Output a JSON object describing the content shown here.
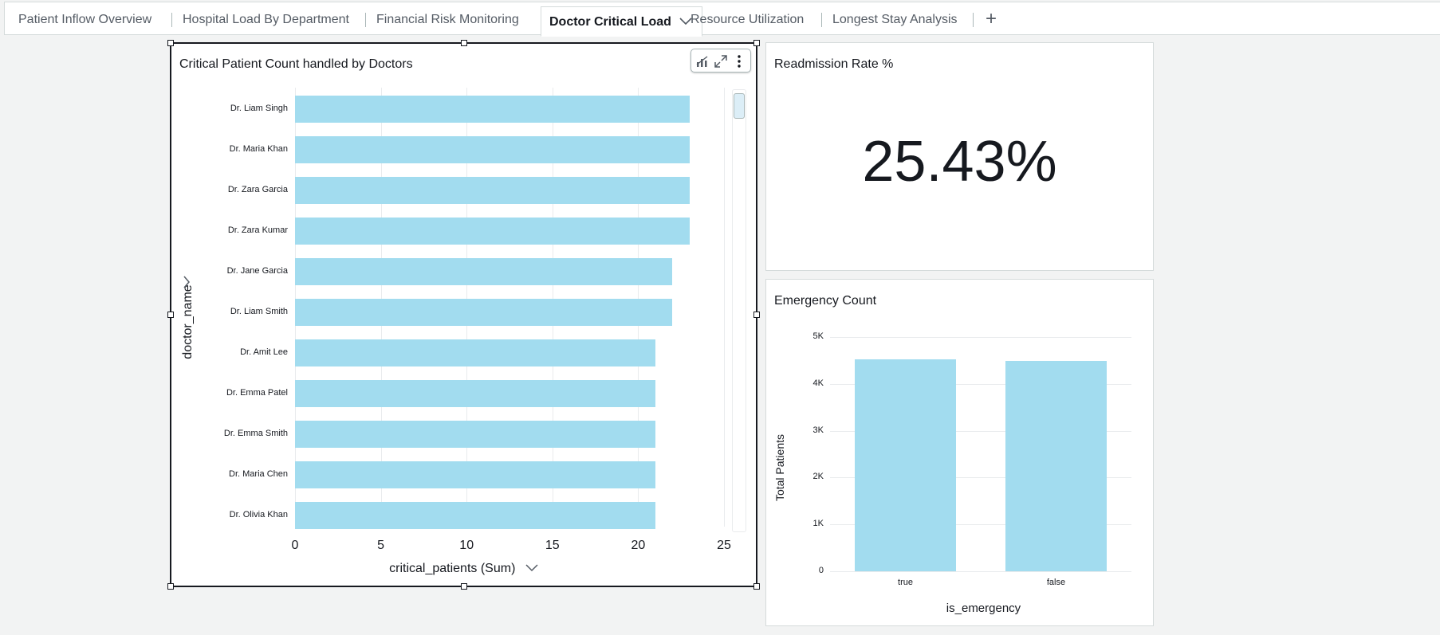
{
  "tabs": [
    {
      "label": "Patient Inflow Overview"
    },
    {
      "label": "Hospital Load By Department"
    },
    {
      "label": "Financial Risk Monitoring"
    },
    {
      "label": "Doctor Critical Load"
    },
    {
      "label": "Resource Utilization"
    },
    {
      "label": "Longest Stay Analysis"
    }
  ],
  "add_tab_label": "+",
  "critical_chart": {
    "title": "Critical Patient Count handled by Doctors",
    "y_axis_label": "doctor_name",
    "x_axis_label": "critical_patients (Sum)",
    "chart_data": {
      "type": "bar",
      "orientation": "horizontal",
      "title": "Critical Patient Count handled by Doctors",
      "xlabel": "critical_patients (Sum)",
      "ylabel": "doctor_name",
      "categories": [
        "Dr. Liam Singh",
        "Dr. Maria Khan",
        "Dr. Zara Garcia",
        "Dr. Zara Kumar",
        "Dr. Jane Garcia",
        "Dr. Liam Smith",
        "Dr. Amit Lee",
        "Dr. Emma Patel",
        "Dr. Emma Smith",
        "Dr. Maria Chen",
        "Dr. Olivia Khan"
      ],
      "values": [
        23,
        23,
        23,
        23,
        22,
        22,
        21,
        21,
        21,
        21,
        21
      ],
      "xlim": [
        0,
        25
      ],
      "xticks": [
        "0",
        "5",
        "10",
        "15",
        "20",
        "25"
      ],
      "grid": true
    }
  },
  "kpi": {
    "title": "Readmission Rate %",
    "value": "25.43%"
  },
  "emergency_chart": {
    "title": "Emergency Count",
    "x_axis_label": "is_emergency",
    "y_axis_label": "Total Patients",
    "chart_data": {
      "type": "bar",
      "title": "Emergency Count",
      "xlabel": "is_emergency",
      "ylabel": "Total Patients",
      "categories": [
        "true",
        "false"
      ],
      "values": [
        4520,
        4490
      ],
      "ylim": [
        0,
        5000
      ],
      "yticks": [
        "0",
        "1K",
        "2K",
        "3K",
        "4K",
        "5K"
      ],
      "grid": true
    }
  },
  "colors": {
    "bar": "#a2dcef",
    "grid": "#e9ebed",
    "text": "#16191f"
  }
}
